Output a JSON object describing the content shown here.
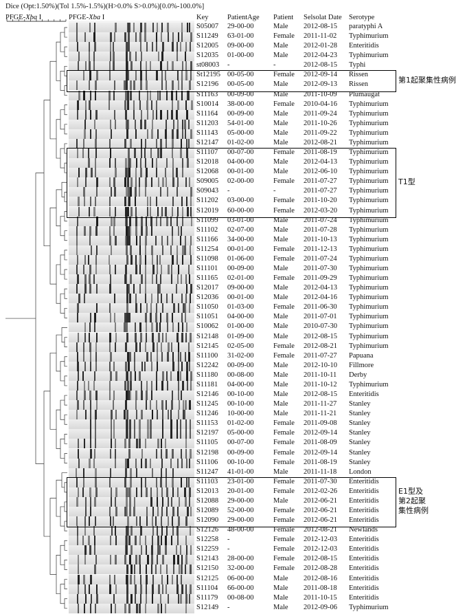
{
  "header": {
    "method": "Dice (Opt:1.50%)(Tol 1.5%-1.5%)(H>0.0% S>0.0%)[0.0%-100.0%]",
    "pfge_left_prefix": "PFGE-",
    "pfge_left_enzyme": "Xba",
    "pfge_left_suffix": " I",
    "pfge_right_prefix": "PFGE-",
    "pfge_right_enzyme": "Xba",
    "pfge_right_suffix": " I"
  },
  "columns": {
    "key": "Key",
    "age": "PatientAge",
    "sex": "Patient",
    "date": "Selsolat Date",
    "serotype": "Serotype"
  },
  "rows": [
    {
      "key": "S05007",
      "age": "29-00-00",
      "sex": "Male",
      "date": "2012-08-15",
      "sero": "paratyphi A"
    },
    {
      "key": "S11249",
      "age": "63-01-00",
      "sex": "Female",
      "date": "2011-11-02",
      "sero": "Typhimurium"
    },
    {
      "key": "S12005",
      "age": "09-00-00",
      "sex": "Male",
      "date": "2012-01-28",
      "sero": "Enteritidis"
    },
    {
      "key": "S12035",
      "age": "01-00-00",
      "sex": "Male",
      "date": "2012-04-23",
      "sero": "Typhimurium"
    },
    {
      "key": "st08003",
      "age": "-",
      "sex": "-",
      "date": "2012-08-15",
      "sero": "Typhi"
    },
    {
      "key": "St12195",
      "age": "00-05-00",
      "sex": "Female",
      "date": "2012-09-14",
      "sero": "Rissen"
    },
    {
      "key": "S12196",
      "age": "00-05-00",
      "sex": "Male",
      "date": "2012-09-13",
      "sero": "Rissen"
    },
    {
      "key": "S11163",
      "age": "00-09-00",
      "sex": "Male",
      "date": "2011-10-09",
      "sero": "Plumaugat"
    },
    {
      "key": "S10014",
      "age": "38-00-00",
      "sex": "Female",
      "date": "2010-04-16",
      "sero": "Typhimurium"
    },
    {
      "key": "S11164",
      "age": "00-09-00",
      "sex": "Male",
      "date": "2011-09-24",
      "sero": "Typhimurium"
    },
    {
      "key": "S11203",
      "age": "54-01-00",
      "sex": "Male",
      "date": "2011-10-26",
      "sero": "Typhimurium"
    },
    {
      "key": "S11143",
      "age": "05-00-00",
      "sex": "Male",
      "date": "2011-09-22",
      "sero": "Typhimurium"
    },
    {
      "key": "S12147",
      "age": "01-02-00",
      "sex": "Male",
      "date": "2012-08-21",
      "sero": "Typhimurium"
    },
    {
      "key": "S11107",
      "age": "00-07-00",
      "sex": "Female",
      "date": "2011-08-19",
      "sero": "Typhimurium"
    },
    {
      "key": "S12018",
      "age": "04-00-00",
      "sex": "Male",
      "date": "2012-04-13",
      "sero": "Typhimurium"
    },
    {
      "key": "S12068",
      "age": "00-01-00",
      "sex": "Male",
      "date": "2012-06-10",
      "sero": "Typhimurium"
    },
    {
      "key": "S09005",
      "age": "02-00-00",
      "sex": "Female",
      "date": "2011-07-27",
      "sero": "Typhimurium"
    },
    {
      "key": "S09043",
      "age": "-",
      "sex": "-",
      "date": "2011-07-27",
      "sero": "Typhimurium"
    },
    {
      "key": "S11202",
      "age": "03-00-00",
      "sex": "Female",
      "date": "2011-10-20",
      "sero": "Typhimurium"
    },
    {
      "key": "S12019",
      "age": "60-00-00",
      "sex": "Female",
      "date": "2012-03-20",
      "sero": "Typhimurium"
    },
    {
      "key": "S11099",
      "age": "03-01-00",
      "sex": "Male",
      "date": "2011-07-24",
      "sero": "Typhimurium"
    },
    {
      "key": "S11102",
      "age": "02-07-00",
      "sex": "Male",
      "date": "2011-07-28",
      "sero": "Typhimurium"
    },
    {
      "key": "S11166",
      "age": "34-00-00",
      "sex": "Male",
      "date": "2011-10-13",
      "sero": "Typhimurium"
    },
    {
      "key": "S11254",
      "age": "00-01-00",
      "sex": "Female",
      "date": "2011-12-13",
      "sero": "Typhimurium"
    },
    {
      "key": "S11098",
      "age": "01-06-00",
      "sex": "Female",
      "date": "2011-07-24",
      "sero": "Typhimurium"
    },
    {
      "key": "S11101",
      "age": "00-09-00",
      "sex": "Male",
      "date": "2011-07-30",
      "sero": "Typhimurium"
    },
    {
      "key": "S11165",
      "age": "02-01-00",
      "sex": "Female",
      "date": "2011-09-29",
      "sero": "Typhimurium"
    },
    {
      "key": "S12017",
      "age": "09-00-00",
      "sex": "Male",
      "date": "2012-04-13",
      "sero": "Typhimurium"
    },
    {
      "key": "S12036",
      "age": "00-01-00",
      "sex": "Male",
      "date": "2012-04-16",
      "sero": "Typhimurium"
    },
    {
      "key": "S11050",
      "age": "01-03-00",
      "sex": "Female",
      "date": "2011-06-30",
      "sero": "Typhimurium"
    },
    {
      "key": "S11051",
      "age": "04-00-00",
      "sex": "Male",
      "date": "2011-07-01",
      "sero": "Typhimurium"
    },
    {
      "key": "S10062",
      "age": "01-00-00",
      "sex": "Male",
      "date": "2010-07-30",
      "sero": "Typhimurium"
    },
    {
      "key": "S12148",
      "age": "01-09-00",
      "sex": "Male",
      "date": "2012-08-15",
      "sero": "Typhimurium"
    },
    {
      "key": "S12145",
      "age": "02-05-00",
      "sex": "Female",
      "date": "2012-08-21",
      "sero": "Typhimurium"
    },
    {
      "key": "S11100",
      "age": "31-02-00",
      "sex": "Female",
      "date": "2011-07-27",
      "sero": "Papuana"
    },
    {
      "key": "S12242",
      "age": "00-09-00",
      "sex": "Male",
      "date": "2012-10-10",
      "sero": "Fillmore"
    },
    {
      "key": "S11180",
      "age": "00-08-00",
      "sex": "Male",
      "date": "2011-10-11",
      "sero": "Derby"
    },
    {
      "key": "S11181",
      "age": "04-00-00",
      "sex": "Male",
      "date": "2011-10-12",
      "sero": "Typhimurium"
    },
    {
      "key": "S12146",
      "age": "00-10-00",
      "sex": "Male",
      "date": "2012-08-15",
      "sero": "Enteritidis"
    },
    {
      "key": "S11245",
      "age": "00-10-00",
      "sex": "Male",
      "date": "2011-11-27",
      "sero": "Stanley"
    },
    {
      "key": "S11246",
      "age": "10-00-00",
      "sex": "Male",
      "date": "2011-11-21",
      "sero": "Stanley"
    },
    {
      "key": "S11153",
      "age": "01-02-00",
      "sex": "Female",
      "date": "2011-09-08",
      "sero": "Stanley"
    },
    {
      "key": "S12197",
      "age": "05-00-00",
      "sex": "Female",
      "date": "2012-09-14",
      "sero": "Stanley"
    },
    {
      "key": "S11105",
      "age": "00-07-00",
      "sex": "Female",
      "date": "2011-08-09",
      "sero": "Stanley"
    },
    {
      "key": "S12198",
      "age": "00-09-00",
      "sex": "Female",
      "date": "2012-09-14",
      "sero": "Stanley"
    },
    {
      "key": "S11106",
      "age": "00-10-00",
      "sex": "Female",
      "date": "2011-08-19",
      "sero": "Stanley"
    },
    {
      "key": "S11247",
      "age": "41-01-00",
      "sex": "Male",
      "date": "2011-11-18",
      "sero": "London"
    },
    {
      "key": "S11103",
      "age": "23-01-00",
      "sex": "Female",
      "date": "2011-07-30",
      "sero": "Enteritidis"
    },
    {
      "key": "S12013",
      "age": "20-01-00",
      "sex": "Female",
      "date": "2012-02-26",
      "sero": "Enteritidis"
    },
    {
      "key": "S12088",
      "age": "29-00-00",
      "sex": "Male",
      "date": "2012-06-21",
      "sero": "Enteritidis"
    },
    {
      "key": "S12089",
      "age": "52-00-00",
      "sex": "Female",
      "date": "2012-06-21",
      "sero": "Enteritidis"
    },
    {
      "key": "S12090",
      "age": "29-00-00",
      "sex": "Female",
      "date": "2012-06-21",
      "sero": "Enteritidis"
    },
    {
      "key": "S12126",
      "age": "48-00-00",
      "sex": "Female",
      "date": "2012-08-21",
      "sero": "Newlands"
    },
    {
      "key": "S12258",
      "age": "-",
      "sex": "Female",
      "date": "2012-12-03",
      "sero": "Enteritidis"
    },
    {
      "key": "S12259",
      "age": "-",
      "sex": "Female",
      "date": "2012-12-03",
      "sero": "Enteritidis"
    },
    {
      "key": "S12143",
      "age": "28-00-00",
      "sex": "Female",
      "date": "2012-08-15",
      "sero": "Enteritidis"
    },
    {
      "key": "S12150",
      "age": "32-00-00",
      "sex": "Female",
      "date": "2012-08-28",
      "sero": "Enteritidis"
    },
    {
      "key": "S12125",
      "age": "06-00-00",
      "sex": "Male",
      "date": "2012-08-16",
      "sero": "Enteritidis"
    },
    {
      "key": "S11104",
      "age": "66-00-00",
      "sex": "Male",
      "date": "2011-08-18",
      "sero": "Enteritidis"
    },
    {
      "key": "S11179",
      "age": "00-08-00",
      "sex": "Male",
      "date": "2011-10-15",
      "sero": "Enteritidis"
    },
    {
      "key": "S12149",
      "age": "-",
      "sex": "Male",
      "date": "2012-09-06",
      "sero": "Typhimurium"
    }
  ],
  "clusters": [
    {
      "label": "第1起聚集性病例",
      "first": 5,
      "last": 6
    },
    {
      "label": "T1型",
      "first": 13,
      "last": 19
    },
    {
      "label": "E1型及\n第2起聚\n集性病例",
      "first": 47,
      "last": 51
    }
  ]
}
